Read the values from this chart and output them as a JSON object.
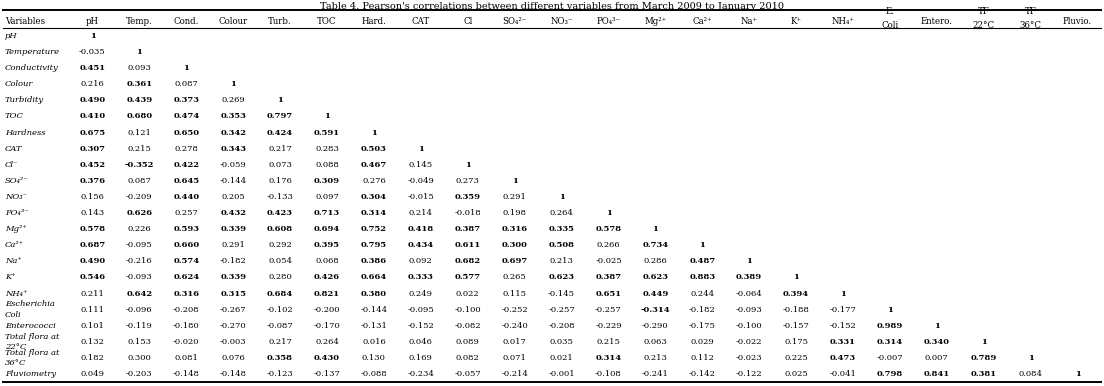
{
  "title": "Table 4. Pearson's correlations between different variables from March 2009 to January 2010",
  "col_headers_line1": [
    "Variables",
    "pH",
    "Temp.",
    "Cond.",
    "Colour",
    "Turb.",
    "TOC",
    "Hard.",
    "CAT",
    "Cl",
    "SO₄²⁻",
    "NO₃⁻",
    "PO₄³⁻",
    "Mg²⁺",
    "Ca²⁺",
    "Na⁺",
    "K⁺",
    "NH₄⁺",
    "E.",
    "Entero.",
    "TF",
    "TF",
    "Pluvio."
  ],
  "col_headers_line2": [
    "",
    "",
    "",
    "",
    "",
    "",
    "",
    "",
    "",
    "",
    "",
    "",
    "",
    "",
    "",
    "",
    "",
    "",
    "Coli",
    "",
    "22°C",
    "36°C",
    ""
  ],
  "rows": [
    {
      "label": "pH",
      "label2": "",
      "values": [
        "1",
        "",
        "",
        "",
        "",
        "",
        "",
        "",
        "",
        "",
        "",
        "",
        "",
        "",
        "",
        "",
        "",
        "",
        "",
        "",
        "",
        ""
      ],
      "bold": [
        true,
        false,
        false,
        false,
        false,
        false,
        false,
        false,
        false,
        false,
        false,
        false,
        false,
        false,
        false,
        false,
        false,
        false,
        false,
        false,
        false,
        false
      ]
    },
    {
      "label": "Temperature",
      "label2": "",
      "values": [
        "-0.035",
        "1",
        "",
        "",
        "",
        "",
        "",
        "",
        "",
        "",
        "",
        "",
        "",
        "",
        "",
        "",
        "",
        "",
        "",
        "",
        "",
        ""
      ],
      "bold": [
        false,
        true,
        false,
        false,
        false,
        false,
        false,
        false,
        false,
        false,
        false,
        false,
        false,
        false,
        false,
        false,
        false,
        false,
        false,
        false,
        false,
        false
      ]
    },
    {
      "label": "Conductivity",
      "label2": "",
      "values": [
        "0.451",
        "0.093",
        "1",
        "",
        "",
        "",
        "",
        "",
        "",
        "",
        "",
        "",
        "",
        "",
        "",
        "",
        "",
        "",
        "",
        "",
        "",
        ""
      ],
      "bold": [
        true,
        false,
        true,
        false,
        false,
        false,
        false,
        false,
        false,
        false,
        false,
        false,
        false,
        false,
        false,
        false,
        false,
        false,
        false,
        false,
        false,
        false
      ]
    },
    {
      "label": "Colour",
      "label2": "",
      "values": [
        "0.216",
        "0.361",
        "0.087",
        "1",
        "",
        "",
        "",
        "",
        "",
        "",
        "",
        "",
        "",
        "",
        "",
        "",
        "",
        "",
        "",
        "",
        "",
        ""
      ],
      "bold": [
        false,
        true,
        false,
        true,
        false,
        false,
        false,
        false,
        false,
        false,
        false,
        false,
        false,
        false,
        false,
        false,
        false,
        false,
        false,
        false,
        false,
        false
      ]
    },
    {
      "label": "Turbidity",
      "label2": "",
      "values": [
        "0.490",
        "0.439",
        "0.373",
        "0.269",
        "1",
        "",
        "",
        "",
        "",
        "",
        "",
        "",
        "",
        "",
        "",
        "",
        "",
        "",
        "",
        "",
        "",
        ""
      ],
      "bold": [
        true,
        true,
        true,
        false,
        true,
        false,
        false,
        false,
        false,
        false,
        false,
        false,
        false,
        false,
        false,
        false,
        false,
        false,
        false,
        false,
        false,
        false
      ]
    },
    {
      "label": "TOC",
      "label2": "",
      "values": [
        "0.410",
        "0.680",
        "0.474",
        "0.353",
        "0.797",
        "1",
        "",
        "",
        "",
        "",
        "",
        "",
        "",
        "",
        "",
        "",
        "",
        "",
        "",
        "",
        "",
        ""
      ],
      "bold": [
        true,
        true,
        true,
        true,
        true,
        true,
        false,
        false,
        false,
        false,
        false,
        false,
        false,
        false,
        false,
        false,
        false,
        false,
        false,
        false,
        false,
        false
      ]
    },
    {
      "label": "Hardness",
      "label2": "",
      "values": [
        "0.675",
        "0.121",
        "0.650",
        "0.342",
        "0.424",
        "0.591",
        "1",
        "",
        "",
        "",
        "",
        "",
        "",
        "",
        "",
        "",
        "",
        "",
        "",
        "",
        "",
        ""
      ],
      "bold": [
        true,
        false,
        true,
        true,
        true,
        true,
        true,
        false,
        false,
        false,
        false,
        false,
        false,
        false,
        false,
        false,
        false,
        false,
        false,
        false,
        false,
        false
      ]
    },
    {
      "label": "CAT",
      "label2": "",
      "values": [
        "0.307",
        "0.215",
        "0.278",
        "0.343",
        "0.217",
        "0.283",
        "0.503",
        "1",
        "",
        "",
        "",
        "",
        "",
        "",
        "",
        "",
        "",
        "",
        "",
        "",
        "",
        ""
      ],
      "bold": [
        true,
        false,
        false,
        true,
        false,
        false,
        true,
        true,
        false,
        false,
        false,
        false,
        false,
        false,
        false,
        false,
        false,
        false,
        false,
        false,
        false,
        false
      ]
    },
    {
      "label": "Cl⁻",
      "label2": "",
      "values": [
        "0.452",
        "-0.352",
        "0.422",
        "-0.059",
        "0.073",
        "0.088",
        "0.467",
        "0.145",
        "1",
        "",
        "",
        "",
        "",
        "",
        "",
        "",
        "",
        "",
        "",
        "",
        "",
        ""
      ],
      "bold": [
        true,
        true,
        true,
        false,
        false,
        false,
        true,
        false,
        true,
        false,
        false,
        false,
        false,
        false,
        false,
        false,
        false,
        false,
        false,
        false,
        false,
        false
      ]
    },
    {
      "label": "SO₄²⁻",
      "label2": "",
      "values": [
        "0.376",
        "0.087",
        "0.645",
        "-0.144",
        "0.176",
        "0.309",
        "0.276",
        "-0.049",
        "0.273",
        "1",
        "",
        "",
        "",
        "",
        "",
        "",
        "",
        "",
        "",
        "",
        "",
        ""
      ],
      "bold": [
        true,
        false,
        true,
        false,
        false,
        true,
        false,
        false,
        false,
        true,
        false,
        false,
        false,
        false,
        false,
        false,
        false,
        false,
        false,
        false,
        false,
        false
      ]
    },
    {
      "label": "NO₃⁻",
      "label2": "",
      "values": [
        "0.156",
        "-0.209",
        "0.440",
        "0.205",
        "-0.133",
        "0.097",
        "0.304",
        "-0.015",
        "0.359",
        "0.291",
        "1",
        "",
        "",
        "",
        "",
        "",
        "",
        "",
        "",
        "",
        "",
        ""
      ],
      "bold": [
        false,
        false,
        true,
        false,
        false,
        false,
        true,
        false,
        true,
        false,
        true,
        false,
        false,
        false,
        false,
        false,
        false,
        false,
        false,
        false,
        false,
        false
      ]
    },
    {
      "label": "PO₄³⁻",
      "label2": "",
      "values": [
        "0.143",
        "0.626",
        "0.257",
        "0.432",
        "0.423",
        "0.713",
        "0.314",
        "0.214",
        "-0.018",
        "0.198",
        "0.264",
        "1",
        "",
        "",
        "",
        "",
        "",
        "",
        "",
        "",
        "",
        ""
      ],
      "bold": [
        false,
        true,
        false,
        true,
        true,
        true,
        true,
        false,
        false,
        false,
        false,
        true,
        false,
        false,
        false,
        false,
        false,
        false,
        false,
        false,
        false,
        false
      ]
    },
    {
      "label": "Mg²⁺",
      "label2": "",
      "values": [
        "0.578",
        "0.226",
        "0.593",
        "0.339",
        "0.608",
        "0.694",
        "0.752",
        "0.418",
        "0.387",
        "0.316",
        "0.335",
        "0.578",
        "1",
        "",
        "",
        "",
        "",
        "",
        "",
        "",
        "",
        ""
      ],
      "bold": [
        true,
        false,
        true,
        true,
        true,
        true,
        true,
        true,
        true,
        true,
        true,
        true,
        true,
        false,
        false,
        false,
        false,
        false,
        false,
        false,
        false,
        false
      ]
    },
    {
      "label": "Ca²⁺",
      "label2": "",
      "values": [
        "0.687",
        "-0.095",
        "0.660",
        "0.291",
        "0.292",
        "0.395",
        "0.795",
        "0.434",
        "0.611",
        "0.300",
        "0.508",
        "0.266",
        "0.734",
        "1",
        "",
        "",
        "",
        "",
        "",
        "",
        "",
        ""
      ],
      "bold": [
        true,
        false,
        true,
        false,
        false,
        true,
        true,
        true,
        true,
        true,
        true,
        false,
        true,
        true,
        false,
        false,
        false,
        false,
        false,
        false,
        false,
        false
      ]
    },
    {
      "label": "Na⁺",
      "label2": "",
      "values": [
        "0.490",
        "-0.216",
        "0.574",
        "-0.182",
        "0.054",
        "0.068",
        "0.386",
        "0.092",
        "0.682",
        "0.697",
        "0.213",
        "-0.025",
        "0.286",
        "0.487",
        "1",
        "",
        "",
        "",
        "",
        "",
        "",
        ""
      ],
      "bold": [
        true,
        false,
        true,
        false,
        false,
        false,
        true,
        false,
        true,
        true,
        false,
        false,
        false,
        true,
        true,
        false,
        false,
        false,
        false,
        false,
        false,
        false
      ]
    },
    {
      "label": "K⁺",
      "label2": "",
      "values": [
        "0.546",
        "-0.093",
        "0.624",
        "0.339",
        "0.280",
        "0.426",
        "0.664",
        "0.333",
        "0.577",
        "0.265",
        "0.623",
        "0.387",
        "0.623",
        "0.883",
        "0.389",
        "1",
        "",
        "",
        "",
        "",
        "",
        ""
      ],
      "bold": [
        true,
        false,
        true,
        true,
        false,
        true,
        true,
        true,
        true,
        false,
        true,
        true,
        true,
        true,
        true,
        true,
        false,
        false,
        false,
        false,
        false,
        false
      ]
    },
    {
      "label": "NH₄⁺",
      "label2": "",
      "values": [
        "0.211",
        "0.642",
        "0.316",
        "0.315",
        "0.684",
        "0.821",
        "0.380",
        "0.249",
        "0.022",
        "0.115",
        "-0.145",
        "0.651",
        "0.449",
        "0.244",
        "-0.064",
        "0.394",
        "1",
        "",
        "",
        "",
        "",
        ""
      ],
      "bold": [
        false,
        true,
        true,
        true,
        true,
        true,
        true,
        false,
        false,
        false,
        false,
        true,
        true,
        false,
        false,
        true,
        true,
        false,
        false,
        false,
        false,
        false
      ]
    },
    {
      "label": "Escherichia",
      "label2": "Coli",
      "values": [
        "0.111",
        "-0.096",
        "-0.208",
        "-0.267",
        "-0.102",
        "-0.200",
        "-0.144",
        "-0.095",
        "-0.100",
        "-0.252",
        "-0.257",
        "-0.257",
        "-0.314",
        "-0.182",
        "-0.093",
        "-0.188",
        "-0.177",
        "1",
        "",
        "",
        "",
        ""
      ],
      "bold": [
        false,
        false,
        false,
        false,
        false,
        false,
        false,
        false,
        false,
        false,
        false,
        false,
        true,
        false,
        false,
        false,
        false,
        true,
        false,
        false,
        false,
        false
      ]
    },
    {
      "label": "Enterococci",
      "label2": "",
      "values": [
        "0.101",
        "-0.119",
        "-0.180",
        "-0.270",
        "-0.087",
        "-0.170",
        "-0.131",
        "-0.152",
        "-0.082",
        "-0.240",
        "-0.208",
        "-0.229",
        "-0.290",
        "-0.175",
        "-0.100",
        "-0.157",
        "-0.152",
        "0.989",
        "1",
        "",
        "",
        ""
      ],
      "bold": [
        false,
        false,
        false,
        false,
        false,
        false,
        false,
        false,
        false,
        false,
        false,
        false,
        false,
        false,
        false,
        false,
        false,
        true,
        true,
        false,
        false,
        false
      ]
    },
    {
      "label": "Total flora at",
      "label2": "22°C",
      "values": [
        "0.132",
        "0.153",
        "-0.020",
        "-0.003",
        "0.217",
        "0.264",
        "0.016",
        "0.046",
        "0.089",
        "0.017",
        "0.035",
        "0.215",
        "0.063",
        "0.029",
        "-0.022",
        "0.175",
        "0.331",
        "0.314",
        "0.340",
        "1",
        "",
        ""
      ],
      "bold": [
        false,
        false,
        false,
        false,
        false,
        false,
        false,
        false,
        false,
        false,
        false,
        false,
        false,
        false,
        false,
        false,
        true,
        true,
        true,
        true,
        false,
        false
      ]
    },
    {
      "label": "Total flora at",
      "label2": "36°C",
      "values": [
        "0.182",
        "0.300",
        "0.081",
        "0.076",
        "0.358",
        "0.430",
        "0.130",
        "0.169",
        "0.082",
        "0.071",
        "0.021",
        "0.314",
        "0.213",
        "0.112",
        "-0.023",
        "0.225",
        "0.473",
        "-0.007",
        "0.007",
        "0.789",
        "1",
        ""
      ],
      "bold": [
        false,
        false,
        false,
        false,
        true,
        true,
        false,
        false,
        false,
        false,
        false,
        true,
        false,
        false,
        false,
        false,
        true,
        false,
        false,
        true,
        true,
        false
      ]
    },
    {
      "label": "Pluviometry",
      "label2": "",
      "values": [
        "0.049",
        "-0.203",
        "-0.148",
        "-0.148",
        "-0.123",
        "-0.137",
        "-0.088",
        "-0.234",
        "-0.057",
        "-0.214",
        "-0.001",
        "-0.108",
        "-0.241",
        "-0.142",
        "-0.122",
        "0.025",
        "-0.041",
        "0.798",
        "0.841",
        "0.381",
        "0.084",
        "1"
      ],
      "bold": [
        false,
        false,
        false,
        false,
        false,
        false,
        false,
        false,
        false,
        false,
        false,
        false,
        false,
        false,
        false,
        false,
        false,
        true,
        true,
        true,
        false,
        true
      ]
    }
  ],
  "background_color": "#ffffff",
  "title_fontsize": 7.0,
  "cell_fontsize": 6.0,
  "header_fontsize": 6.2
}
